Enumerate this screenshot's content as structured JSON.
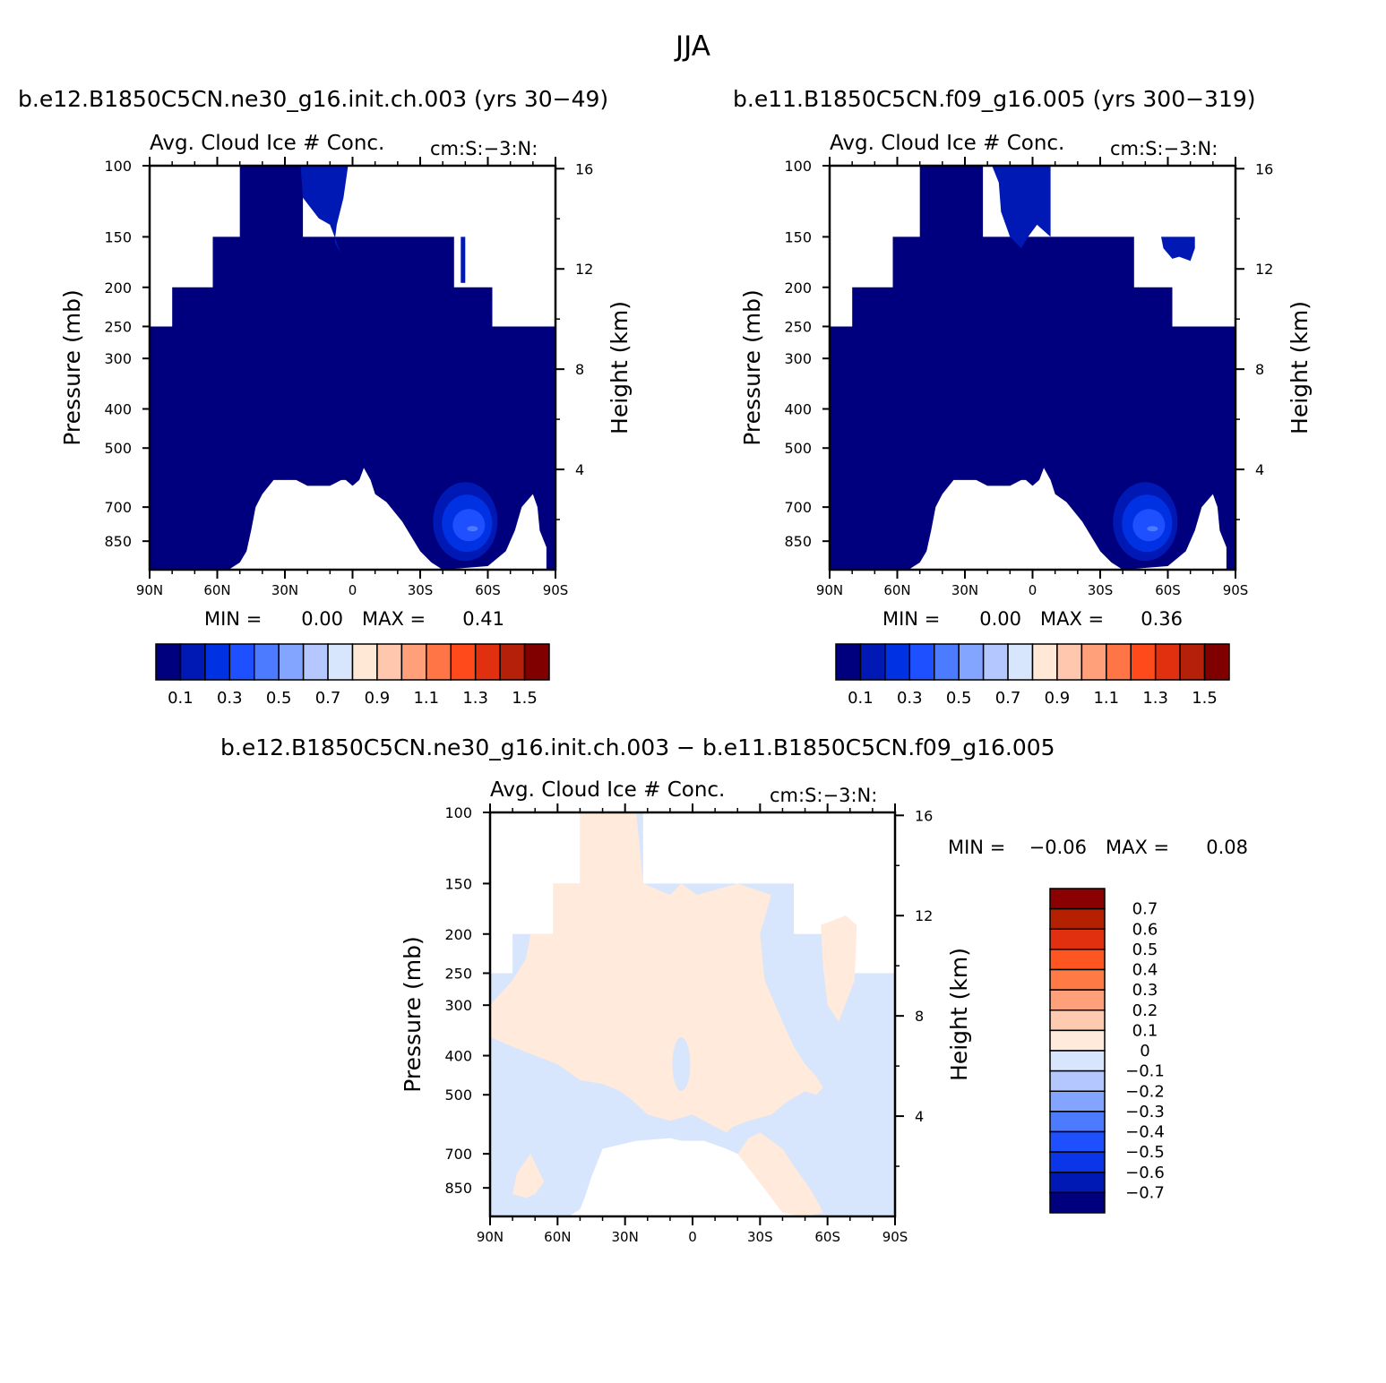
{
  "main_title": "JJA",
  "panels": {
    "left": {
      "case_title": "b.e12.B1850C5CN.ne30_g16.init.ch.003 (yrs 30−49)",
      "min_label": "MIN =",
      "min_value": "0.00",
      "max_label": "MAX =",
      "max_value": "0.41"
    },
    "right": {
      "case_title": "b.e11.B1850C5CN.f09_g16.005 (yrs 300−319)",
      "min_label": "MIN =",
      "min_value": "0.00",
      "max_label": "MAX =",
      "max_value": "0.36"
    },
    "diff": {
      "case_title": "b.e12.B1850C5CN.ne30_g16.init.ch.003 − b.e11.B1850C5CN.f09_g16.005",
      "min_label": "MIN =",
      "min_value": "−0.06",
      "max_label": "MAX =",
      "max_value": "0.08"
    }
  },
  "chart_data": [
    {
      "type": "heatmap",
      "panel": "left",
      "title": "Avg. Cloud Ice # Conc.",
      "subtitle": "cm:S:−3:N:",
      "ylabel": "Pressure (mb)",
      "y2label": "Height (km)",
      "x_ticks": [
        "90N",
        "60N",
        "30N",
        "0",
        "30S",
        "60S",
        "90S"
      ],
      "y_ticks": [
        "100",
        "150",
        "200",
        "250",
        "300",
        "400",
        "500",
        "700",
        "850"
      ],
      "y2_ticks": [
        "16",
        "12",
        "8",
        "4"
      ],
      "y_scale": "log",
      "min": 0.0,
      "max": 0.41,
      "field_summary": "mostly lowest class (<0.1) everywhere with data; values 0.1-0.3 near 55S around 650-850 mb; values 0.1-0.2 near 5N at 100-160 mb"
    },
    {
      "type": "heatmap",
      "panel": "right",
      "title": "Avg. Cloud Ice # Conc.",
      "subtitle": "cm:S:−3:N:",
      "ylabel": "Pressure (mb)",
      "y2label": "Height (km)",
      "x_ticks": [
        "90N",
        "60N",
        "30N",
        "0",
        "30S",
        "60S",
        "90S"
      ],
      "y_ticks": [
        "100",
        "150",
        "200",
        "250",
        "300",
        "400",
        "500",
        "700",
        "850"
      ],
      "y2_ticks": [
        "16",
        "12",
        "8",
        "4"
      ],
      "y_scale": "log",
      "min": 0.0,
      "max": 0.36,
      "field_summary": "mostly lowest class (<0.1) everywhere with data; values 0.1-0.3 near 55S around 650-850 mb; values 0.1-0.2 near 5N at 100-160 mb"
    },
    {
      "type": "heatmap",
      "panel": "diff",
      "title": "Avg. Cloud Ice # Conc.",
      "subtitle": "cm:S:−3:N:",
      "ylabel": "Pressure (mb)",
      "y2label": "Height (km)",
      "x_ticks": [
        "90N",
        "60N",
        "30N",
        "0",
        "30S",
        "60S",
        "90S"
      ],
      "y_ticks": [
        "100",
        "150",
        "200",
        "250",
        "300",
        "400",
        "500",
        "700",
        "850"
      ],
      "y2_ticks": [
        "16",
        "12",
        "8",
        "4"
      ],
      "y_scale": "log",
      "min": -0.06,
      "max": 0.08,
      "field_summary": "0 to 0.1 over tropics and midlatitude upper troposphere; -0.1 to 0 at high latitudes and in lower troposphere"
    }
  ],
  "colorbars": {
    "main": {
      "colors": [
        "#00007f",
        "#0019b4",
        "#0032e3",
        "#1e50ff",
        "#4d7bff",
        "#84a5ff",
        "#b4c8ff",
        "#d7e6fc",
        "#ffe8d6",
        "#ffc8ae",
        "#ffa07a",
        "#ff7546",
        "#ff4a1c",
        "#e0300f",
        "#b4200a",
        "#800000"
      ],
      "labels": [
        "0.1",
        "0.3",
        "0.5",
        "0.7",
        "0.9",
        "1.1",
        "1.3",
        "1.5"
      ]
    },
    "diff": {
      "colors": [
        "#8b0000",
        "#b42000",
        "#e03010",
        "#ff5520",
        "#ff7a45",
        "#ffa07a",
        "#ffcbb0",
        "#ffeadb",
        "#d7e6fc",
        "#b4c8ff",
        "#84a5ff",
        "#4d7bff",
        "#1e50ff",
        "#0a35e8",
        "#0019b4",
        "#00007f"
      ],
      "labels": [
        "0.7",
        "0.6",
        "0.5",
        "0.4",
        "0.3",
        "0.2",
        "0.1",
        "0",
        "−0.1",
        "−0.2",
        "−0.3",
        "−0.4",
        "−0.5",
        "−0.6",
        "−0.7"
      ]
    }
  }
}
